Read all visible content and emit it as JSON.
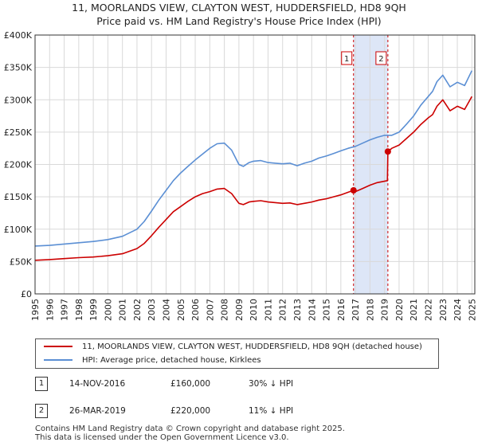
{
  "header": {
    "title": "11, MOORLANDS VIEW, CLAYTON WEST, HUDDERSFIELD, HD8 9QH",
    "subtitle": "Price paid vs. HM Land Registry's House Price Index (HPI)"
  },
  "chart_data": {
    "type": "line",
    "title": "Price paid vs. HM Land Registry's House Price Index (HPI)",
    "xlim": [
      1995,
      2025.2
    ],
    "ylim": [
      0,
      400000
    ],
    "y_ticks": [
      {
        "value": 0,
        "label": "£0"
      },
      {
        "value": 50000,
        "label": "£50K"
      },
      {
        "value": 100000,
        "label": "£100K"
      },
      {
        "value": 150000,
        "label": "£150K"
      },
      {
        "value": 200000,
        "label": "£200K"
      },
      {
        "value": 250000,
        "label": "£250K"
      },
      {
        "value": 300000,
        "label": "£300K"
      },
      {
        "value": 350000,
        "label": "£350K"
      },
      {
        "value": 400000,
        "label": "£400K"
      }
    ],
    "x_ticks": [
      "1995",
      "1996",
      "1997",
      "1998",
      "1999",
      "2000",
      "2001",
      "2002",
      "2003",
      "2004",
      "2005",
      "2006",
      "2007",
      "2008",
      "2009",
      "2010",
      "2011",
      "2012",
      "2013",
      "2014",
      "2015",
      "2016",
      "2017",
      "2018",
      "2019",
      "2020",
      "2021",
      "2022",
      "2023",
      "2024",
      "2025"
    ],
    "grid": true,
    "shaded_region": {
      "from": 2016.87,
      "to": 2019.23,
      "color": "#dde6f7"
    },
    "series": [
      {
        "name": "11, MOORLANDS VIEW, CLAYTON WEST, HUDDERSFIELD, HD8 9QH (detached house)",
        "color": "#cc0000",
        "x": [
          1995,
          1996,
          1997,
          1998,
          1999,
          2000,
          2001,
          2002,
          2002.5,
          2003,
          2003.5,
          2004,
          2004.5,
          2005,
          2005.5,
          2006,
          2006.5,
          2007,
          2007.5,
          2008,
          2008.5,
          2009,
          2009.3,
          2009.7,
          2010,
          2010.5,
          2011,
          2011.5,
          2012,
          2012.5,
          2013,
          2013.5,
          2014,
          2014.5,
          2015,
          2015.5,
          2016,
          2016.5,
          2016.87,
          2017,
          2017.5,
          2018,
          2018.5,
          2019.2,
          2019.23,
          2019.5,
          2020,
          2020.5,
          2021,
          2021.5,
          2022,
          2022.3,
          2022.6,
          2023,
          2023.5,
          2024,
          2024.5,
          2025
        ],
        "values": [
          52000,
          53000,
          54500,
          56000,
          57000,
          59000,
          62000,
          70000,
          78000,
          90000,
          103000,
          115000,
          127000,
          135000,
          143000,
          150000,
          155000,
          158000,
          162000,
          163000,
          155000,
          140000,
          138000,
          142000,
          143000,
          144000,
          142000,
          141000,
          140000,
          140500,
          138000,
          140000,
          142000,
          145000,
          147000,
          150000,
          153000,
          157000,
          160000,
          158000,
          163000,
          168000,
          172000,
          175000,
          220000,
          225000,
          230000,
          240000,
          250000,
          262000,
          272000,
          277000,
          290000,
          300000,
          283000,
          290000,
          285000,
          305000
        ]
      },
      {
        "name": "HPI: Average price, detached house, Kirklees",
        "color": "#5b8fd4",
        "x": [
          1995,
          1996,
          1997,
          1998,
          1999,
          2000,
          2001,
          2002,
          2002.5,
          2003,
          2003.5,
          2004,
          2004.5,
          2005,
          2005.5,
          2006,
          2006.5,
          2007,
          2007.5,
          2008,
          2008.5,
          2009,
          2009.3,
          2009.7,
          2010,
          2010.5,
          2011,
          2011.5,
          2012,
          2012.5,
          2013,
          2013.5,
          2014,
          2014.5,
          2015,
          2015.5,
          2016,
          2016.5,
          2017,
          2017.5,
          2018,
          2018.5,
          2019,
          2019.5,
          2020,
          2020.5,
          2021,
          2021.5,
          2022,
          2022.3,
          2022.6,
          2023,
          2023.5,
          2024,
          2024.5,
          2025
        ],
        "values": [
          74000,
          75000,
          77000,
          79000,
          81000,
          84000,
          89000,
          100000,
          112000,
          128000,
          145000,
          160000,
          175000,
          187000,
          197000,
          207000,
          216000,
          225000,
          232000,
          233000,
          222000,
          200000,
          197000,
          203000,
          205000,
          206000,
          203000,
          202000,
          201000,
          202000,
          198000,
          202000,
          205000,
          210000,
          213000,
          217000,
          221000,
          225000,
          228000,
          233000,
          238000,
          242000,
          245000,
          245000,
          250000,
          262000,
          275000,
          292000,
          305000,
          313000,
          328000,
          338000,
          320000,
          327000,
          322000,
          345000
        ]
      }
    ],
    "annotations": [
      {
        "label": "1",
        "x": 2016.87,
        "y": 160000
      },
      {
        "label": "2",
        "x": 2019.23,
        "y": 220000
      }
    ]
  },
  "legend": {
    "items": [
      {
        "label": "11, MOORLANDS VIEW, CLAYTON WEST, HUDDERSFIELD, HD8 9QH (detached house)",
        "color": "#cc0000"
      },
      {
        "label": "HPI: Average price, detached house, Kirklees",
        "color": "#5b8fd4"
      }
    ]
  },
  "transactions": [
    {
      "num": "1",
      "date": "14-NOV-2016",
      "price": "£160,000",
      "hpi": "30% ↓ HPI"
    },
    {
      "num": "2",
      "date": "26-MAR-2019",
      "price": "£220,000",
      "hpi": "11% ↓ HPI"
    }
  ],
  "footer": {
    "line1": "Contains HM Land Registry data © Crown copyright and database right 2025.",
    "line2": "This data is licensed under the Open Government Licence v3.0."
  }
}
